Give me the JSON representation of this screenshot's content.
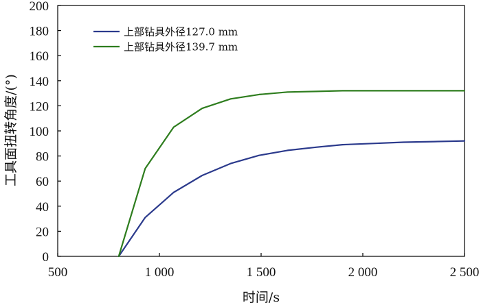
{
  "chart_data": {
    "type": "line",
    "title": "",
    "xlabel": "时间/s",
    "ylabel": "工具面扭转角度/(°)",
    "xlim": [
      500,
      2500
    ],
    "ylim": [
      0,
      200
    ],
    "x_ticks": [
      500,
      1000,
      1500,
      2000,
      2500
    ],
    "x_tick_labels": [
      "500",
      "1 000",
      "1 500",
      "2 000",
      "2 500"
    ],
    "y_ticks": [
      0,
      20,
      40,
      60,
      80,
      100,
      120,
      140,
      160,
      180,
      200
    ],
    "y_tick_labels": [
      "0",
      "20",
      "40",
      "60",
      "80",
      "100",
      "120",
      "140",
      "160",
      "180",
      "200"
    ],
    "grid": false,
    "legend_position": "top-left",
    "series": [
      {
        "name": "上部钻具外径127.0 mm",
        "color": "#2b3a8c",
        "x": [
          800,
          930,
          1070,
          1210,
          1350,
          1490,
          1630,
          1770,
          1900,
          2050,
          2200,
          2350,
          2500
        ],
        "y": [
          0,
          31,
          51,
          64.5,
          74,
          80.5,
          84.5,
          87,
          89,
          90,
          91,
          91.5,
          92
        ]
      },
      {
        "name": "上部钻具外径139.7 mm",
        "color": "#2e7d1e",
        "x": [
          800,
          930,
          1070,
          1210,
          1350,
          1490,
          1630,
          1770,
          1900,
          2050,
          2200,
          2350,
          2500
        ],
        "y": [
          0,
          70,
          103,
          118,
          125.5,
          129,
          131,
          131.5,
          132,
          132,
          132,
          132,
          132
        ]
      }
    ]
  }
}
